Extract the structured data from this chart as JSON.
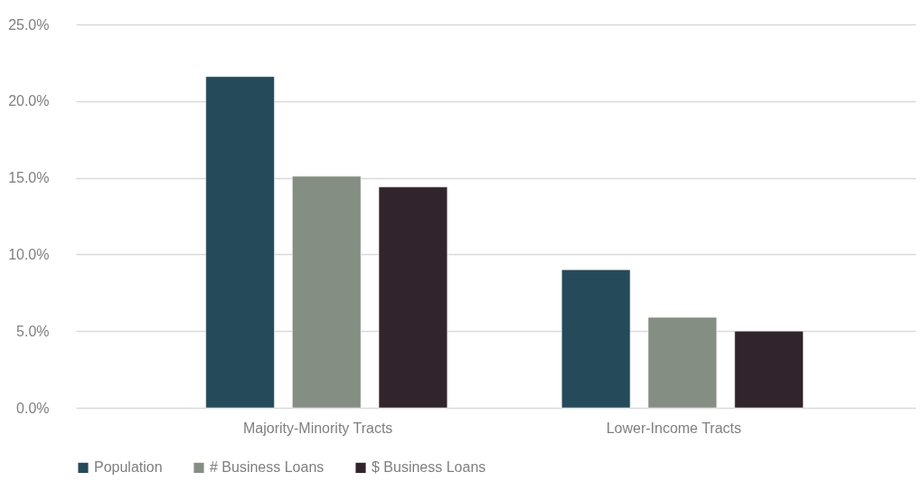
{
  "chart_data": {
    "type": "bar",
    "categories": [
      "Majority-Minority Tracts",
      "Lower-Income Tracts"
    ],
    "series": [
      {
        "name": "Population",
        "color": "#254b5a",
        "values": [
          21.6,
          9.0
        ]
      },
      {
        "name": "# Business Loans",
        "color": "#858e82",
        "values": [
          15.1,
          5.9
        ]
      },
      {
        "name": "$ Business Loans",
        "color": "#31242d",
        "values": [
          14.4,
          5.0
        ]
      }
    ],
    "ylim": [
      0,
      25
    ],
    "yticks": [
      {
        "value": 0,
        "label": "0.0%"
      },
      {
        "value": 5,
        "label": "5.0%"
      },
      {
        "value": 10,
        "label": "10.0%"
      },
      {
        "value": 15,
        "label": "15.0%"
      },
      {
        "value": 20,
        "label": "20.0%"
      },
      {
        "value": 25,
        "label": "25.0%"
      }
    ],
    "grid": "y",
    "legend": "bottom"
  }
}
